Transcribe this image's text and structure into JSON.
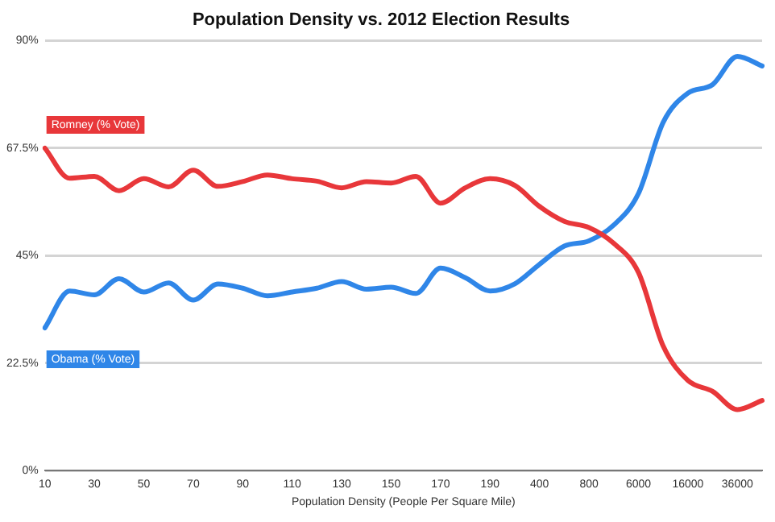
{
  "chart_data": {
    "type": "line",
    "title": "Population Density vs. 2012 Election Results",
    "xlabel": "Population Density (People Per Square Mile)",
    "categories": [
      "10",
      null,
      "30",
      null,
      "50",
      null,
      "70",
      null,
      "90",
      null,
      "110",
      null,
      "130",
      null,
      "150",
      null,
      "170",
      null,
      "190",
      null,
      "400",
      null,
      "800",
      null,
      "6000",
      null,
      "16000",
      null,
      "36000",
      null
    ],
    "series": [
      {
        "name": "Romney (% Vote)",
        "color": "#e8373a",
        "values": [
          67.5,
          61.2,
          61.6,
          58.6,
          61.1,
          59.4,
          62.9,
          59.5,
          60.5,
          61.9,
          61.1,
          60.6,
          59.2,
          60.5,
          60.2,
          61.6,
          56.0,
          59.2,
          61.1,
          59.7,
          55.3,
          52.2,
          50.9,
          47.6,
          41.5,
          26.1,
          18.9,
          16.6,
          12.8,
          14.7
        ]
      },
      {
        "name": "Obama (% Vote)",
        "color": "#2f86e8",
        "values": [
          29.9,
          37.6,
          36.8,
          40.2,
          37.4,
          39.3,
          35.7,
          39.1,
          38.2,
          36.6,
          37.4,
          38.2,
          39.6,
          38.0,
          38.4,
          37.1,
          42.4,
          40.4,
          37.6,
          39.1,
          43.2,
          47.0,
          48.1,
          51.4,
          58.0,
          72.9,
          79.0,
          80.8,
          86.7,
          84.7
        ]
      }
    ],
    "ylim": [
      0,
      90
    ],
    "yticks": [
      {
        "value": 0,
        "label": "0%"
      },
      {
        "value": 22.5,
        "label": "22.5%"
      },
      {
        "value": 45,
        "label": "45%"
      },
      {
        "value": 67.5,
        "label": "67.5%"
      },
      {
        "value": 90,
        "label": "90%"
      }
    ],
    "grid": "y",
    "marker": "none",
    "line_style": "solid"
  }
}
